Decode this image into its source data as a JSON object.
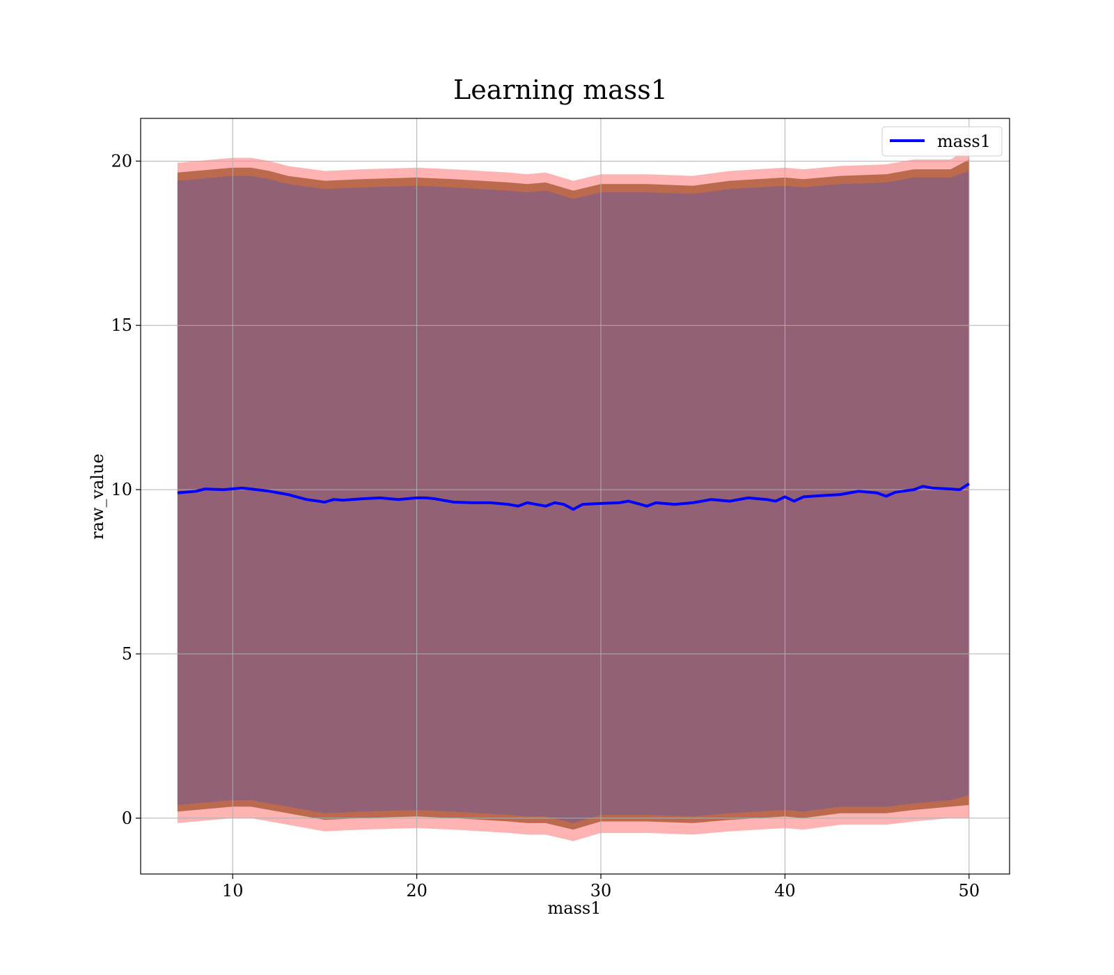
{
  "chart_data": {
    "type": "line",
    "title": "Learning mass1",
    "xlabel": "mass1",
    "ylabel": "raw_value",
    "xlim": [
      5.0,
      52.2
    ],
    "ylim": [
      -1.7,
      21.3
    ],
    "xticks": [
      10,
      20,
      30,
      40,
      50
    ],
    "yticks": [
      0,
      5,
      10,
      15,
      20
    ],
    "grid": true,
    "legend": {
      "position": "upper right",
      "entries": [
        "mass1"
      ]
    },
    "series": [
      {
        "name": "mass1",
        "color": "#0000ff",
        "x": [
          7.0,
          8.0,
          8.5,
          9.5,
          10.5,
          11.0,
          12.0,
          13.0,
          14.0,
          15.0,
          15.5,
          16.0,
          17.0,
          18.0,
          19.0,
          20.0,
          20.5,
          21.0,
          22.0,
          23.0,
          24.0,
          25.0,
          25.5,
          26.0,
          27.0,
          27.5,
          28.0,
          28.5,
          29.0,
          30.0,
          31.0,
          31.5,
          32.5,
          33.0,
          34.0,
          35.0,
          36.0,
          37.0,
          38.0,
          39.0,
          39.5,
          40.0,
          40.5,
          41.0,
          42.0,
          43.0,
          44.0,
          45.0,
          45.5,
          46.0,
          47.0,
          47.5,
          48.0,
          49.0,
          49.5,
          50.0
        ],
        "y": [
          9.9,
          9.95,
          10.02,
          10.0,
          10.05,
          10.02,
          9.95,
          9.85,
          9.7,
          9.62,
          9.7,
          9.68,
          9.72,
          9.75,
          9.7,
          9.75,
          9.75,
          9.72,
          9.62,
          9.6,
          9.6,
          9.55,
          9.5,
          9.6,
          9.5,
          9.6,
          9.55,
          9.4,
          9.55,
          9.58,
          9.6,
          9.65,
          9.5,
          9.6,
          9.55,
          9.6,
          9.7,
          9.65,
          9.75,
          9.7,
          9.65,
          9.78,
          9.65,
          9.78,
          9.82,
          9.85,
          9.95,
          9.9,
          9.8,
          9.92,
          10.0,
          10.1,
          10.05,
          10.02,
          10.0,
          10.18
        ]
      }
    ],
    "bands": [
      {
        "color": "#ff9999",
        "x": [
          7.0,
          10.0,
          11.0,
          12.0,
          13.0,
          15.0,
          17.0,
          20.0,
          22.0,
          25.0,
          26.0,
          27.0,
          28.5,
          30.0,
          32.5,
          35.0,
          37.0,
          40.0,
          41.0,
          43.0,
          45.5,
          47.0,
          49.0,
          50.0
        ],
        "upper": [
          19.95,
          20.1,
          20.1,
          20.0,
          19.85,
          19.7,
          19.75,
          19.8,
          19.75,
          19.65,
          19.6,
          19.65,
          19.4,
          19.6,
          19.6,
          19.55,
          19.7,
          19.8,
          19.75,
          19.85,
          19.9,
          20.05,
          20.05,
          20.4
        ],
        "lower": [
          -0.15,
          0.0,
          0.0,
          -0.1,
          -0.2,
          -0.4,
          -0.35,
          -0.3,
          -0.35,
          -0.45,
          -0.5,
          -0.5,
          -0.7,
          -0.45,
          -0.45,
          -0.5,
          -0.4,
          -0.3,
          -0.35,
          -0.2,
          -0.2,
          -0.1,
          0.0,
          0.0
        ]
      },
      {
        "color": "#b05d3c",
        "x": [
          7.0,
          10.0,
          11.0,
          12.0,
          13.0,
          15.0,
          17.0,
          20.0,
          22.0,
          25.0,
          26.0,
          27.0,
          28.5,
          30.0,
          32.5,
          35.0,
          37.0,
          40.0,
          41.0,
          43.0,
          45.5,
          47.0,
          49.0,
          50.0
        ],
        "upper": [
          19.65,
          19.8,
          19.8,
          19.7,
          19.55,
          19.4,
          19.45,
          19.5,
          19.45,
          19.35,
          19.3,
          19.35,
          19.1,
          19.3,
          19.3,
          19.25,
          19.4,
          19.5,
          19.45,
          19.55,
          19.6,
          19.75,
          19.75,
          20.05
        ],
        "lower": [
          0.2,
          0.35,
          0.35,
          0.25,
          0.15,
          -0.05,
          0.0,
          0.05,
          0.0,
          -0.1,
          -0.15,
          -0.15,
          -0.35,
          -0.1,
          -0.1,
          -0.15,
          -0.05,
          0.05,
          0.0,
          0.15,
          0.15,
          0.25,
          0.35,
          0.4
        ]
      },
      {
        "color": "#8c5f7e",
        "x": [
          7.0,
          10.0,
          11.0,
          12.0,
          13.0,
          15.0,
          17.0,
          20.0,
          22.0,
          25.0,
          26.0,
          27.0,
          28.5,
          30.0,
          32.5,
          35.0,
          37.0,
          40.0,
          41.0,
          43.0,
          45.5,
          47.0,
          49.0,
          50.0
        ],
        "upper": [
          19.4,
          19.55,
          19.55,
          19.45,
          19.3,
          19.15,
          19.2,
          19.25,
          19.2,
          19.1,
          19.05,
          19.1,
          18.85,
          19.05,
          19.05,
          19.0,
          19.15,
          19.25,
          19.2,
          19.3,
          19.35,
          19.5,
          19.5,
          19.7
        ],
        "lower": [
          0.4,
          0.55,
          0.55,
          0.45,
          0.35,
          0.15,
          0.2,
          0.25,
          0.2,
          0.1,
          0.05,
          0.05,
          -0.15,
          0.1,
          0.1,
          0.05,
          0.15,
          0.25,
          0.2,
          0.35,
          0.35,
          0.45,
          0.55,
          0.7
        ]
      }
    ]
  }
}
